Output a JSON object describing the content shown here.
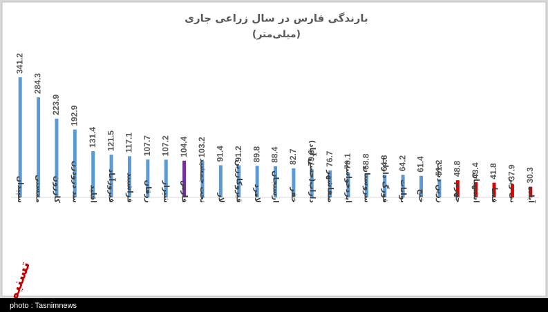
{
  "chart_data": {
    "type": "bar",
    "title": "بارندگی فارس در سال زراعی جاری",
    "subtitle": "(میلی‌متر)",
    "categories": [
      "سپیدان",
      "ممسنی",
      "کازرون",
      "سد درودزن",
      "اقلید",
      "فیروزآباد",
      "فراشبند",
      "زرقان",
      "شیراز",
      "فارس",
      "تخت جمشید",
      "لار",
      "قیروکارزین",
      "لامرد",
      "ارسنجان",
      "خفر",
      "داراب(حسن آباد)",
      "صفاشهر",
      "ایزدخواست",
      "سروستان",
      "فورگ داراب",
      "بوانات",
      "خنج",
      "زرین دشت",
      "جهرم",
      "استهبان",
      "فسا",
      "نی ریز",
      "آباده"
    ],
    "values": [
      341.2,
      284.3,
      223.9,
      192.9,
      131.4,
      121.5,
      117.1,
      107.7,
      107.2,
      104.4,
      103.2,
      91.4,
      91.2,
      89.8,
      88.4,
      82.7,
      79.6,
      76.7,
      70.1,
      68.8,
      64.8,
      64.2,
      61.4,
      51.2,
      48.8,
      43.4,
      41.8,
      37.9,
      30.3
    ],
    "colors": [
      "#5b9bd5",
      "#5b9bd5",
      "#5b9bd5",
      "#5b9bd5",
      "#5b9bd5",
      "#5b9bd5",
      "#5b9bd5",
      "#5b9bd5",
      "#5b9bd5",
      "#7030a0",
      "#5b9bd5",
      "#5b9bd5",
      "#5b9bd5",
      "#5b9bd5",
      "#5b9bd5",
      "#5b9bd5",
      "#5b9bd5",
      "#5b9bd5",
      "#5b9bd5",
      "#5b9bd5",
      "#5b9bd5",
      "#5b9bd5",
      "#5b9bd5",
      "#5b9bd5",
      "#e00000",
      "#e00000",
      "#e00000",
      "#e00000",
      "#e00000"
    ],
    "watermark": "تسنیم",
    "credit": "photo : Tasnimnews"
  }
}
